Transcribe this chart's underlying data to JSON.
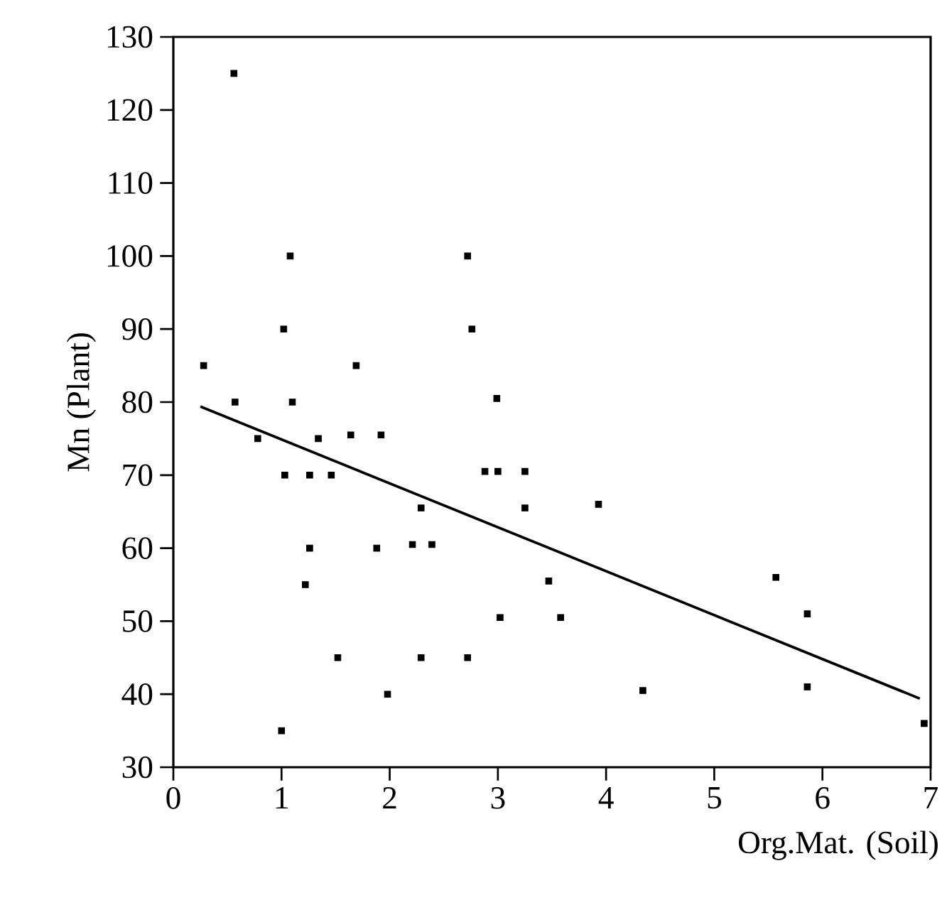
{
  "chart_data": {
    "type": "scatter",
    "xlabel": "Org.Mat. (Soil)",
    "ylabel": "Mn (Plant)",
    "xlim": [
      0,
      7
    ],
    "ylim": [
      30,
      130
    ],
    "xticks": [
      0,
      1,
      2,
      3,
      4,
      5,
      6,
      7
    ],
    "yticks": [
      30,
      40,
      50,
      60,
      70,
      80,
      90,
      100,
      110,
      120,
      130
    ],
    "series": [
      {
        "type": "scatter",
        "color": "#000000",
        "marker": "square",
        "x": [
          0.56,
          1.08,
          2.72,
          1.02,
          2.76,
          0.28,
          1.69,
          0.57,
          1.1,
          2.99,
          0.78,
          1.34,
          1.64,
          1.92,
          1.03,
          1.26,
          1.46,
          2.88,
          3.0,
          3.25,
          2.29,
          3.25,
          1.26,
          1.88,
          2.21,
          2.39,
          1.22,
          3.47,
          3.02,
          3.93,
          3.58,
          5.57,
          5.86,
          1.52,
          2.29,
          2.72,
          1.98,
          4.34,
          5.86,
          1.0,
          6.94
        ],
        "values": [
          125,
          100,
          100,
          90,
          90,
          85,
          85,
          80,
          80,
          80.5,
          75,
          75,
          75.5,
          75.5,
          70,
          70,
          70,
          70.5,
          70.5,
          70.5,
          65.5,
          65.5,
          60,
          60,
          60.5,
          60.5,
          55,
          55.5,
          50.5,
          66,
          50.5,
          56,
          51,
          45,
          45,
          45,
          40,
          40.5,
          41,
          35,
          36
        ]
      },
      {
        "type": "line",
        "color": "#000000",
        "marker": "none",
        "x": [
          0.25,
          6.9
        ],
        "values": [
          79.4,
          39.4
        ]
      }
    ]
  }
}
